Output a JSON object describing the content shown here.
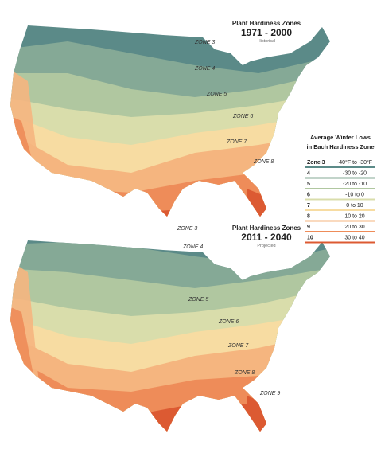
{
  "maps": [
    {
      "title": "Plant Hardiness Zones",
      "years": "1971 - 2000",
      "subtitle": "Historical",
      "labels": [
        "ZONE 3",
        "ZONE 4",
        "ZONE 5",
        "ZONE 6",
        "ZONE 7",
        "ZONE 8"
      ]
    },
    {
      "title": "Plant Hardiness Zones",
      "years": "2011 - 2040",
      "subtitle": "Projected",
      "labels": [
        "ZONE 3",
        "ZONE 4",
        "ZONE 5",
        "ZONE 6",
        "ZONE 7",
        "ZONE 8",
        "ZONE 9"
      ]
    }
  ],
  "legend": {
    "title": [
      "Average Winter Lows",
      "in Each Hardiness Zone"
    ],
    "rows": [
      {
        "zone": "Zone 3",
        "range": "-40°F to -30°F",
        "color": "#5b8a88"
      },
      {
        "zone": "4",
        "range": "-30 to -20",
        "color": "#85a996"
      },
      {
        "zone": "5",
        "range": "-20 to -10",
        "color": "#b0c7a0"
      },
      {
        "zone": "6",
        "range": "-10 to 0",
        "color": "#d9ddab"
      },
      {
        "zone": "7",
        "range": "0 to 10",
        "color": "#f7dca2"
      },
      {
        "zone": "8",
        "range": "10 to 20",
        "color": "#f5b57f"
      },
      {
        "zone": "9",
        "range": "20 to 30",
        "color": "#ee8c59"
      },
      {
        "zone": "10",
        "range": "30 to 40",
        "color": "#dc5a32"
      }
    ]
  }
}
